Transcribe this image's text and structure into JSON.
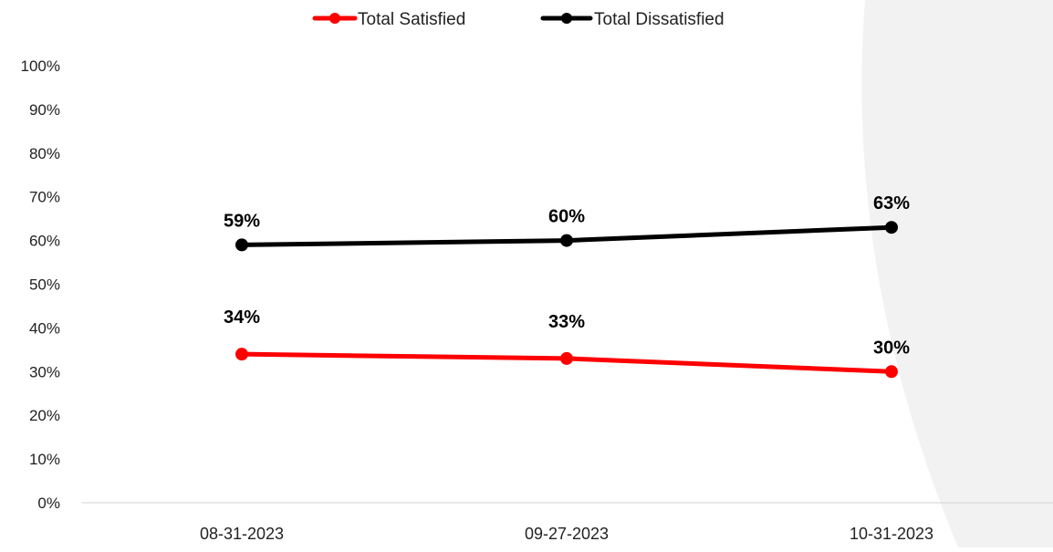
{
  "chart_data": {
    "type": "line",
    "title": "",
    "xlabel": "",
    "ylabel": "",
    "categories": [
      "08-31-2023",
      "09-27-2023",
      "10-31-2023"
    ],
    "ylim": [
      0,
      100
    ],
    "y_ticks": [
      0,
      10,
      20,
      30,
      40,
      50,
      60,
      70,
      80,
      90,
      100
    ],
    "y_tick_labels": [
      "0%",
      "10%",
      "20%",
      "30%",
      "40%",
      "50%",
      "60%",
      "70%",
      "80%",
      "90%",
      "100%"
    ],
    "grid": false,
    "legend_position": "top",
    "series": [
      {
        "name": "Total Satisfied",
        "color": "#ff0000",
        "values": [
          34,
          33,
          30
        ],
        "data_labels": [
          "34%",
          "33%",
          "30%"
        ]
      },
      {
        "name": "Total Dissatisfied",
        "color": "#000000",
        "values": [
          59,
          60,
          63
        ],
        "data_labels": [
          "59%",
          "60%",
          "63%"
        ]
      }
    ]
  },
  "theme": {
    "background_shape_color": "#f2f2f2",
    "axis_color": "#d9d9d9",
    "label_color": "#000000"
  }
}
